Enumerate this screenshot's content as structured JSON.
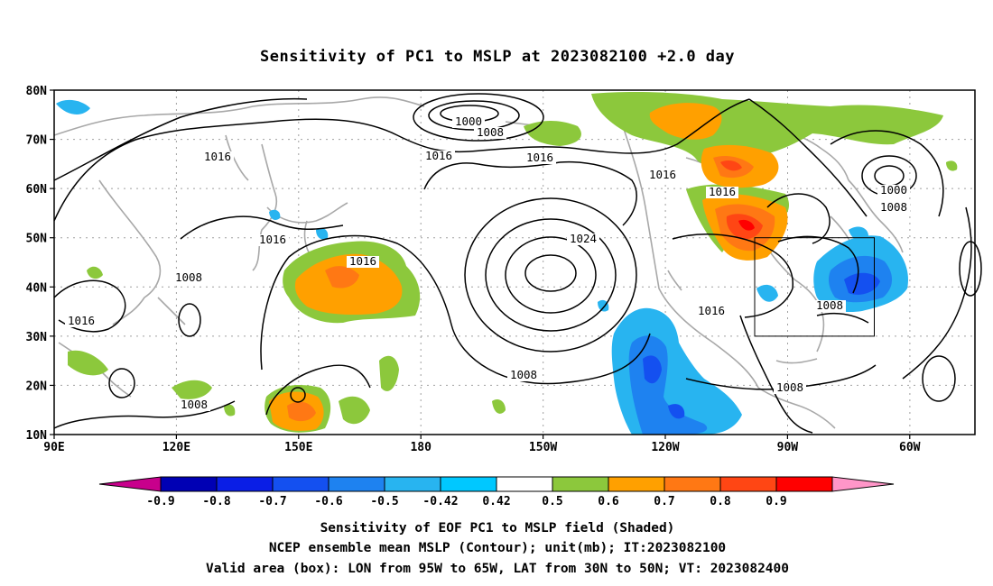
{
  "title": "Sensitivity of PC1 to MSLP at 2023082100 +2.0 day",
  "map": {
    "lat_ticks": [
      "80N",
      "70N",
      "60N",
      "50N",
      "40N",
      "30N",
      "20N",
      "10N"
    ],
    "lon_ticks": [
      "90E",
      "120E",
      "150E",
      "180",
      "150W",
      "120W",
      "90W",
      "60W"
    ],
    "lon_range": [
      90,
      316
    ],
    "lat_range": [
      10,
      80
    ],
    "grid": "dotted",
    "valid_box": {
      "lon_min": -95,
      "lon_max": -65,
      "lat_min": 30,
      "lat_max": 50
    }
  },
  "contour_labels": [
    "1000",
    "1008",
    "1016",
    "1016",
    "1016",
    "1016",
    "1016",
    "1024",
    "1016",
    "1008",
    "1000",
    "1008",
    "1008",
    "1008",
    "1016",
    "1016",
    "1016",
    "1008",
    "1008"
  ],
  "colorbar": {
    "tick_labels": [
      "-0.9",
      "-0.8",
      "-0.7",
      "-0.6",
      "-0.5",
      "-0.42",
      "0.42",
      "0.5",
      "0.6",
      "0.7",
      "0.8",
      "0.9"
    ],
    "colors": [
      "#c8008c",
      "#0000b4",
      "#0a1ee6",
      "#1450f0",
      "#1e82f0",
      "#28b4f0",
      "#00c8ff",
      "#ffffff",
      "#8cc83c",
      "#ffa000",
      "#ff7814",
      "#ff4614",
      "#ff0000",
      "#ff96c8"
    ]
  },
  "captions": [
    "Sensitivity of EOF PC1 to MSLP field (Shaded)",
    "NCEP ensemble mean MSLP (Contour); unit(mb); IT:2023082100",
    "Valid area (box): LON from 95W to 65W, LAT from 30N to 50N; VT: 2023082400"
  ]
}
